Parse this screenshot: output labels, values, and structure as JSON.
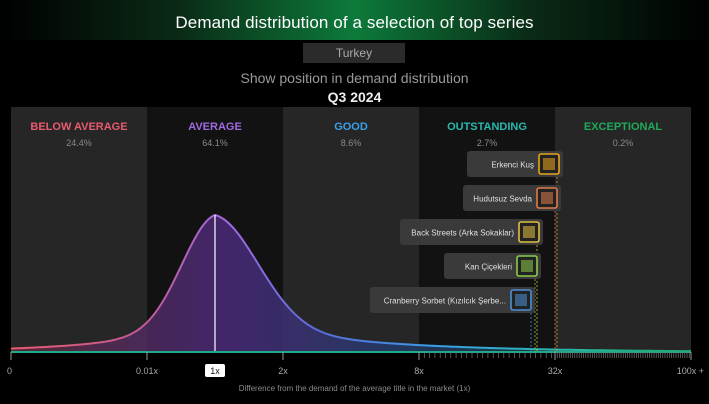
{
  "header": {
    "title": "Demand distribution of a selection of top series",
    "market": "Turkey",
    "subtitle": "Show position in demand distribution",
    "period": "Q3 2024"
  },
  "chart_data": {
    "type": "area",
    "title": "Demand distribution of a selection of top series",
    "xlabel": "Difference from the demand of the average title in the market (1x)",
    "x_ticks": [
      "0",
      "0.01x",
      "1x",
      "2x",
      "8x",
      "32x",
      "100x +"
    ],
    "highlight_tick": "1x",
    "bands": [
      {
        "name": "BELOW AVERAGE",
        "share": "24.4%",
        "color": "#e85a70"
      },
      {
        "name": "AVERAGE",
        "share": "64.1%",
        "color": "#a06ae0"
      },
      {
        "name": "GOOD",
        "share": "8.6%",
        "color": "#3a9ee8"
      },
      {
        "name": "OUTSTANDING",
        "share": "2.7%",
        "color": "#2ab7b0"
      },
      {
        "name": "EXCEPTIONAL",
        "share": "0.2%",
        "color": "#1faa5a"
      }
    ],
    "titles": [
      {
        "name": "Erkenci Kuş",
        "color": "#e8a41c"
      },
      {
        "name": "Hudutsuz Sevda",
        "color": "#e07a4a"
      },
      {
        "name": "Back Streets (Arka Sokaklar)",
        "color": "#e0c040"
      },
      {
        "name": "Kan Çiçekleri",
        "color": "#8acc48"
      },
      {
        "name": "Cranberry Sorbet (Kızılcık Şerbe...",
        "color": "#4a90d8"
      }
    ]
  }
}
